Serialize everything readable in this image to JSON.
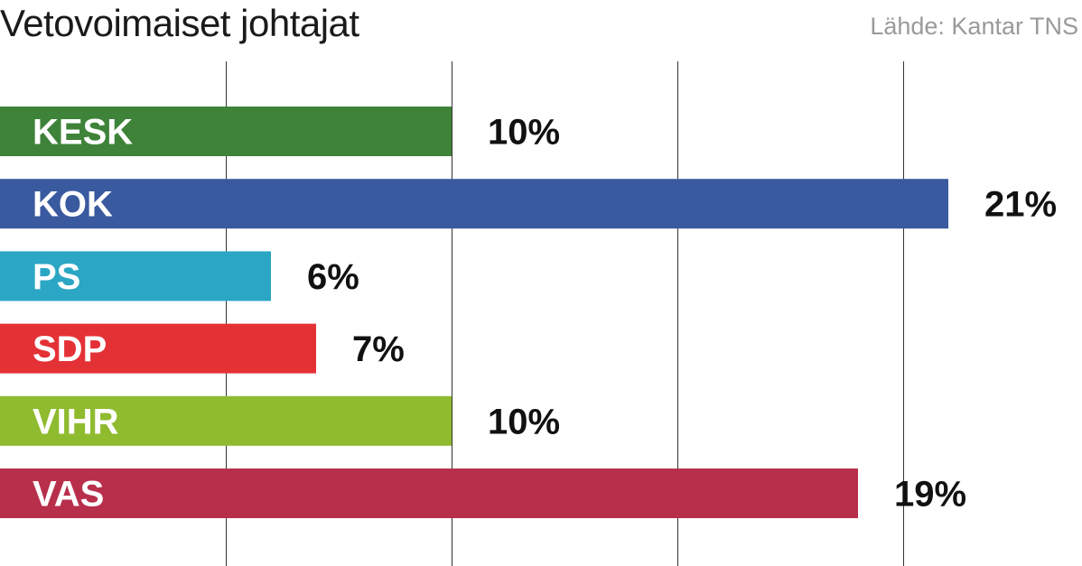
{
  "header": {
    "title": "Vetovoimaiset johtajat",
    "source": "Lähde: Kantar TNS"
  },
  "chart_data": {
    "type": "bar",
    "orientation": "horizontal",
    "title": "Vetovoimaiset johtajat",
    "source": "Lähde: Kantar TNS",
    "unit": "%",
    "categories": [
      "KESK",
      "KOK",
      "PS",
      "SDP",
      "VIHR",
      "VAS"
    ],
    "values": [
      10,
      21,
      6,
      7,
      10,
      19
    ],
    "value_labels": [
      "10%",
      "21%",
      "6%",
      "7%",
      "10%",
      "19%"
    ],
    "colors": [
      "#3e8339",
      "#3a5aa0",
      "#2ba6c4",
      "#e43136",
      "#8fbb2f",
      "#b82f4c"
    ],
    "xlim": [
      0,
      24
    ],
    "gridlines_at": [
      5,
      10,
      15,
      20
    ],
    "grid": true,
    "legend": "none"
  }
}
